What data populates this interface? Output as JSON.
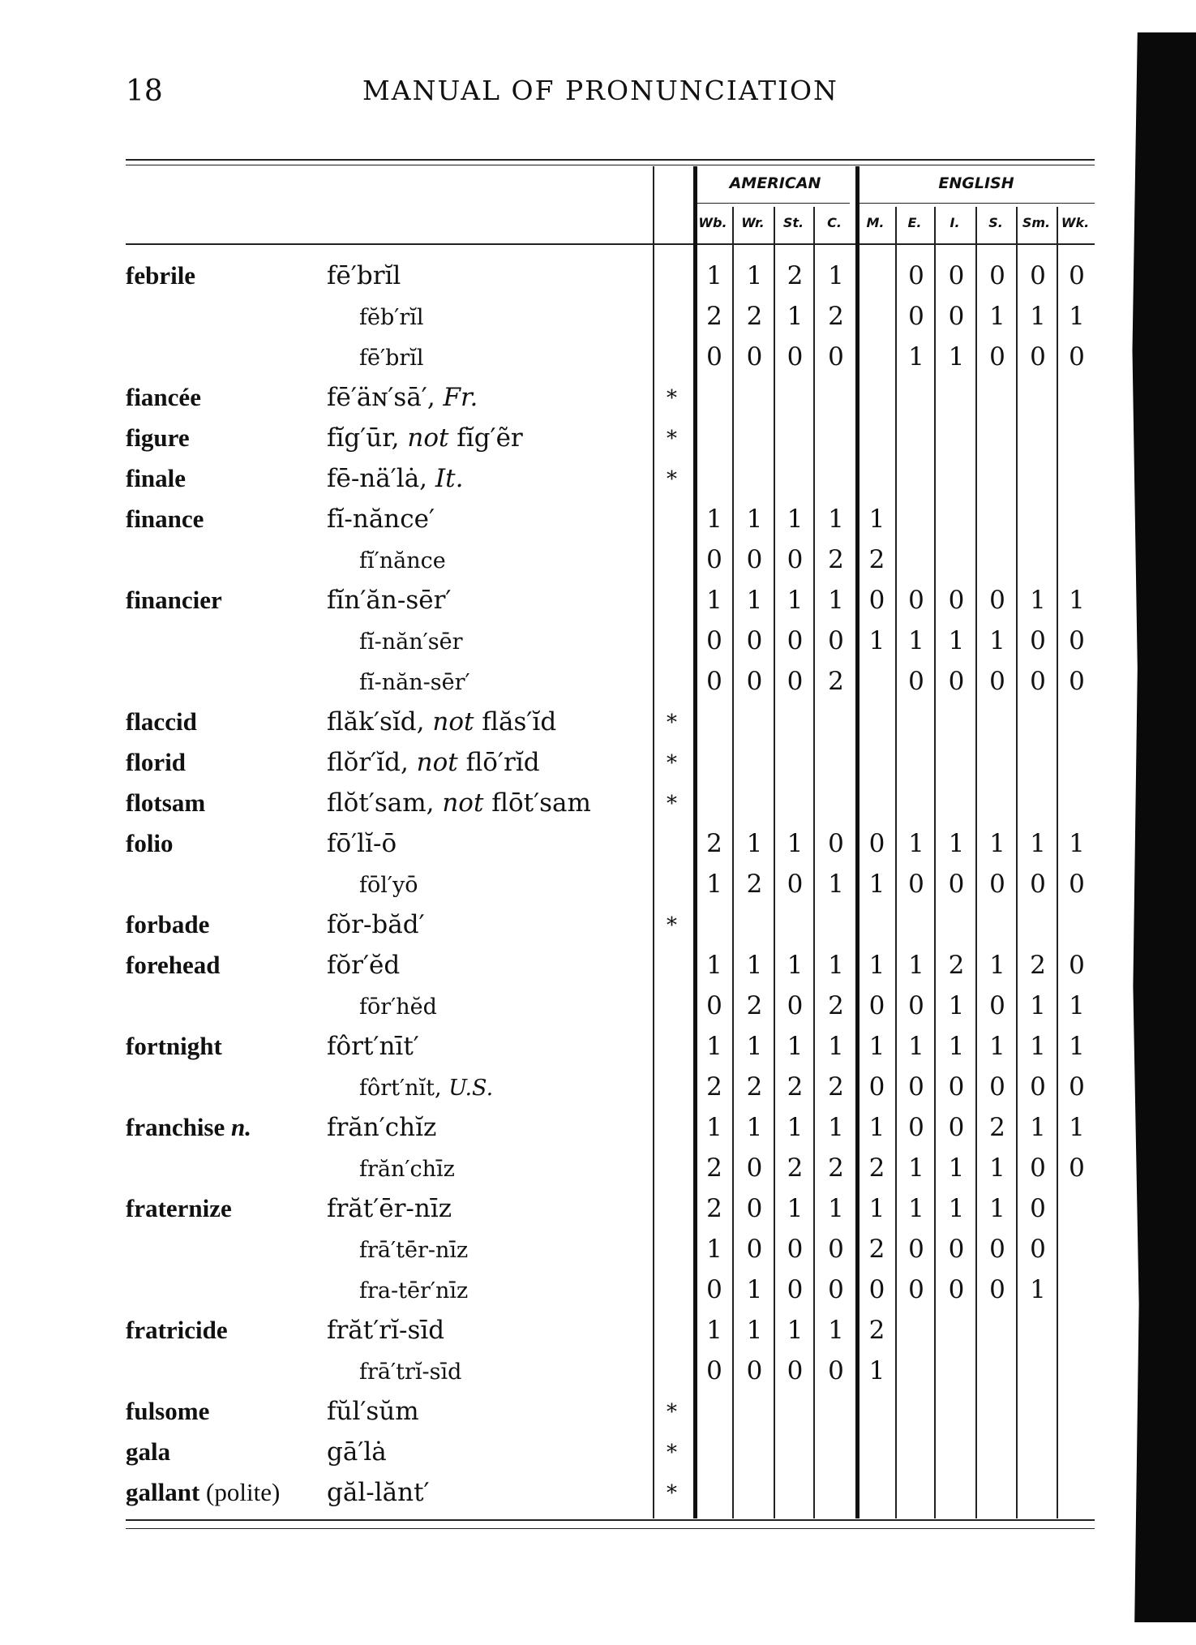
{
  "page_number": "18",
  "running_title": "MANUAL OF PRONUNCIATION",
  "groups": [
    "AMERICAN",
    "ENGLISH"
  ],
  "columns": [
    "Wb.",
    "Wr.",
    "St.",
    "C.",
    "M.",
    "E.",
    "I.",
    "S.",
    "Sm.",
    "Wk."
  ],
  "rows": [
    {
      "word": "febrile",
      "pron": [
        {
          "t": "fē′brĭl"
        }
      ],
      "v": [
        1,
        1,
        2,
        1,
        null,
        0,
        0,
        0,
        0,
        0
      ]
    },
    {
      "sub": true,
      "pron": [
        {
          "t": "fĕb′rĭl"
        }
      ],
      "v": [
        2,
        2,
        1,
        2,
        null,
        0,
        0,
        1,
        1,
        1
      ]
    },
    {
      "sub": true,
      "pron": [
        {
          "t": "fē′brĭl"
        }
      ],
      "v": [
        0,
        0,
        0,
        0,
        null,
        1,
        1,
        0,
        0,
        0
      ]
    },
    {
      "word": "fiancée",
      "pron": [
        {
          "t": "fē′äɴ′sā′, "
        },
        {
          "t": "Fr.",
          "i": true
        }
      ],
      "star": "*"
    },
    {
      "word": "figure",
      "pron": [
        {
          "t": "fĭg′ūr, "
        },
        {
          "t": "not",
          "i": true
        },
        {
          "t": " fĭg′ẽr"
        }
      ],
      "star": "*"
    },
    {
      "word": "finale",
      "pron": [
        {
          "t": "fē-nä′lȧ, "
        },
        {
          "t": "It.",
          "i": true
        }
      ],
      "star": "*"
    },
    {
      "word": "finance",
      "pron": [
        {
          "t": "fĭ-nănce′"
        }
      ],
      "v": [
        1,
        1,
        1,
        1,
        1,
        null,
        null,
        null,
        null,
        null
      ]
    },
    {
      "sub": true,
      "pron": [
        {
          "t": "fĭ′nănce"
        }
      ],
      "v": [
        0,
        0,
        0,
        2,
        2,
        null,
        null,
        null,
        null,
        null
      ]
    },
    {
      "word": "financier",
      "pron": [
        {
          "t": "fĭn′ăn-sēr′"
        }
      ],
      "v": [
        1,
        1,
        1,
        1,
        0,
        0,
        0,
        0,
        1,
        1
      ]
    },
    {
      "sub": true,
      "pron": [
        {
          "t": "fĭ-năn′sēr"
        }
      ],
      "v": [
        0,
        0,
        0,
        0,
        1,
        1,
        1,
        1,
        0,
        0
      ]
    },
    {
      "sub": true,
      "pron": [
        {
          "t": "fĭ-năn-sēr′"
        }
      ],
      "v": [
        0,
        0,
        0,
        2,
        null,
        0,
        0,
        0,
        0,
        0
      ]
    },
    {
      "word": "flaccid",
      "pron": [
        {
          "t": "flăk′sĭd, "
        },
        {
          "t": "not",
          "i": true
        },
        {
          "t": " flăs′ĭd"
        }
      ],
      "star": "*"
    },
    {
      "word": "florid",
      "pron": [
        {
          "t": "flŏr′ĭd, "
        },
        {
          "t": "not",
          "i": true
        },
        {
          "t": " flō′rĭd"
        }
      ],
      "star": "*"
    },
    {
      "word": "flotsam",
      "pron": [
        {
          "t": "flŏt′sam, "
        },
        {
          "t": "not",
          "i": true
        },
        {
          "t": " flōt′sam"
        }
      ],
      "star": "*"
    },
    {
      "word": "folio",
      "pron": [
        {
          "t": "fō′lĭ-ō"
        }
      ],
      "v": [
        2,
        1,
        1,
        0,
        0,
        1,
        1,
        1,
        1,
        1
      ]
    },
    {
      "sub": true,
      "pron": [
        {
          "t": "fōl′yō"
        }
      ],
      "v": [
        1,
        2,
        0,
        1,
        1,
        0,
        0,
        0,
        0,
        0
      ]
    },
    {
      "word": "forbade",
      "pron": [
        {
          "t": "fŏr-băd′"
        }
      ],
      "star": "*"
    },
    {
      "word": "forehead",
      "pron": [
        {
          "t": "fŏr′ĕd"
        }
      ],
      "v": [
        1,
        1,
        1,
        1,
        1,
        1,
        2,
        1,
        2,
        0
      ]
    },
    {
      "sub": true,
      "pron": [
        {
          "t": "fōr′hĕd"
        }
      ],
      "v": [
        0,
        2,
        0,
        2,
        0,
        0,
        1,
        0,
        1,
        1
      ]
    },
    {
      "word": "fortnight",
      "pron": [
        {
          "t": "fôrt′nīt′"
        }
      ],
      "v": [
        1,
        1,
        1,
        1,
        1,
        1,
        1,
        1,
        1,
        1
      ]
    },
    {
      "sub": true,
      "pron": [
        {
          "t": "fôrt′nĭt, "
        },
        {
          "t": "U.S.",
          "i": true
        }
      ],
      "v": [
        2,
        2,
        2,
        2,
        0,
        0,
        0,
        0,
        0,
        0
      ]
    },
    {
      "word": "franchise",
      "word_note": " n.",
      "pron": [
        {
          "t": "frăn′chĭz"
        }
      ],
      "v": [
        1,
        1,
        1,
        1,
        1,
        0,
        0,
        2,
        1,
        1
      ]
    },
    {
      "sub": true,
      "pron": [
        {
          "t": "frăn′chīz"
        }
      ],
      "v": [
        2,
        0,
        2,
        2,
        2,
        1,
        1,
        1,
        0,
        0
      ]
    },
    {
      "word": "fraternize",
      "pron": [
        {
          "t": "frăt′ēr-nīz"
        }
      ],
      "v": [
        2,
        0,
        1,
        1,
        1,
        1,
        1,
        1,
        0,
        null
      ]
    },
    {
      "sub": true,
      "pron": [
        {
          "t": "frā′tēr-nīz"
        }
      ],
      "v": [
        1,
        0,
        0,
        0,
        2,
        0,
        0,
        0,
        0,
        null
      ]
    },
    {
      "sub": true,
      "pron": [
        {
          "t": "fra-tēr′nīz"
        }
      ],
      "v": [
        0,
        1,
        0,
        0,
        0,
        0,
        0,
        0,
        1,
        null
      ]
    },
    {
      "word": "fratricide",
      "pron": [
        {
          "t": "frăt′rĭ-sīd"
        }
      ],
      "v": [
        1,
        1,
        1,
        1,
        2,
        null,
        null,
        null,
        null,
        null
      ]
    },
    {
      "sub": true,
      "pron": [
        {
          "t": "frā′trĭ-sīd"
        }
      ],
      "v": [
        0,
        0,
        0,
        0,
        1,
        null,
        null,
        null,
        null,
        null
      ]
    },
    {
      "word": "fulsome",
      "pron": [
        {
          "t": "fŭl′sŭm"
        }
      ],
      "star": "*"
    },
    {
      "word": "gala",
      "pron": [
        {
          "t": "gā′lȧ"
        }
      ],
      "star": "*"
    },
    {
      "word": "gallant",
      "word_plain": " (polite)",
      "pron": [
        {
          "t": "găl-lănt′"
        }
      ],
      "star": "*"
    }
  ]
}
